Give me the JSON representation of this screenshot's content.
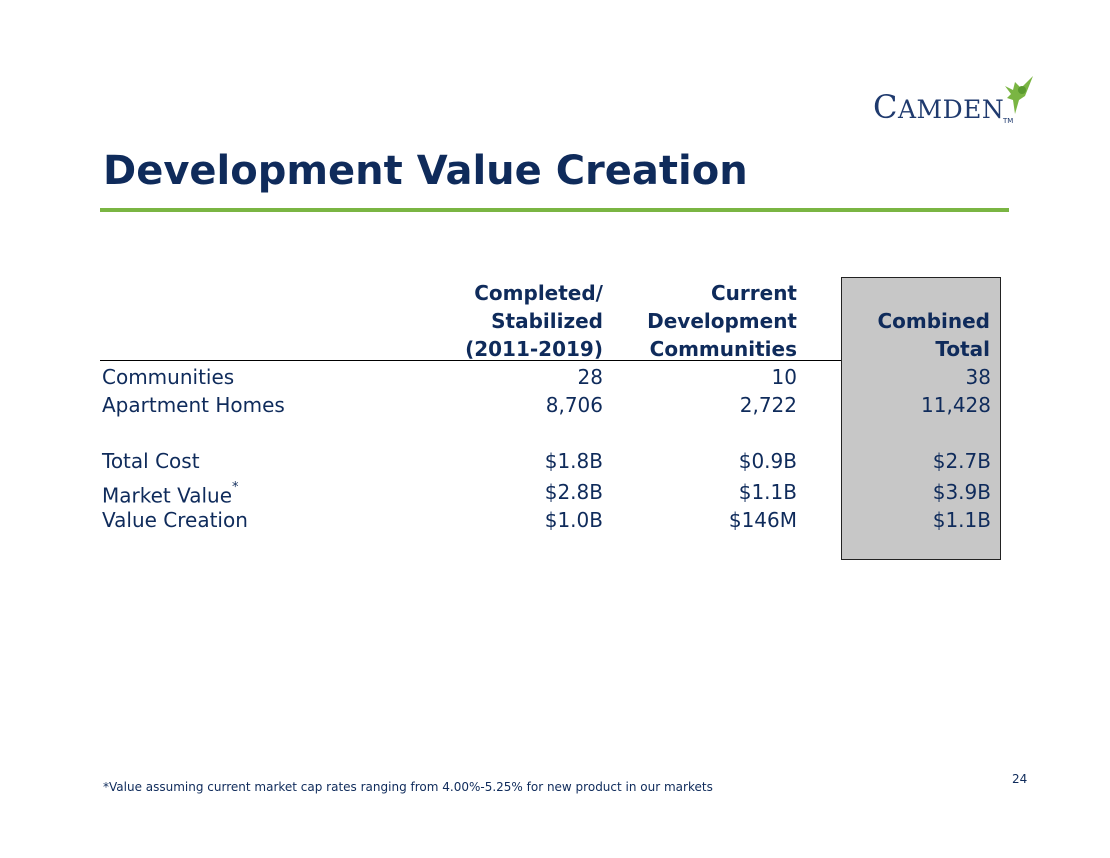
{
  "logo": {
    "first": "C",
    "rest": "AMDEN",
    "trademark": "TM"
  },
  "title": "Development Value Creation",
  "table": {
    "headers": [
      [
        "Completed/",
        "Stabilized",
        "(2011-2019)"
      ],
      [
        "Current",
        "Development",
        "Communities"
      ],
      [
        "Combined",
        "Total"
      ]
    ],
    "rows": [
      {
        "label": "Communities",
        "marker": "",
        "values": [
          "28",
          "10",
          "38"
        ]
      },
      {
        "label": "Apartment Homes",
        "marker": "",
        "values": [
          "8,706",
          "2,722",
          "11,428"
        ]
      },
      {
        "label": "Total Cost",
        "marker": "",
        "values": [
          "$1.8B",
          "$0.9B",
          "$2.7B"
        ]
      },
      {
        "label": "Market Value",
        "marker": "*",
        "values": [
          "$2.8B",
          "$1.1B",
          "$3.9B"
        ]
      },
      {
        "label": "Value Creation",
        "marker": "",
        "values": [
          "$1.0B",
          "$146M",
          "$1.1B"
        ]
      }
    ]
  },
  "footnote": "*Value assuming current market cap rates ranging from 4.00%-5.25% for new product in our markets",
  "page_number": "24",
  "colors": {
    "navy": "#0f2b5b",
    "accent_green": "#7ab543",
    "total_shade": "#c7c7c7"
  }
}
